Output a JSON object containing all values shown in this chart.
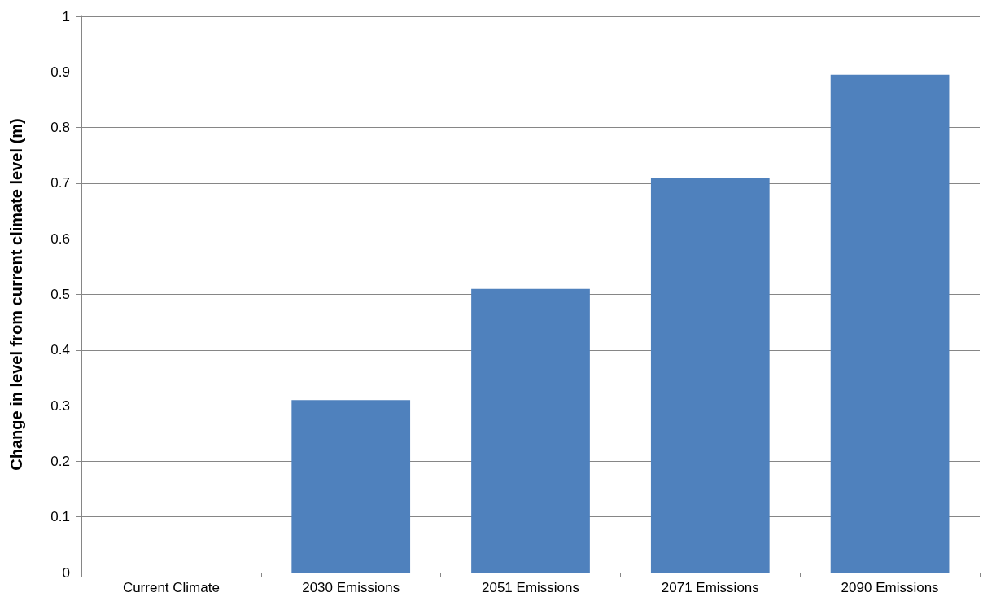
{
  "chart_data": {
    "type": "bar",
    "ylabel": "Change in level from current climate level (m)",
    "categories": [
      "Current Climate",
      "2030 Emissions",
      "2051 Emissions",
      "2071 Emissions",
      "2090 Emissions"
    ],
    "values": [
      0,
      0.31,
      0.51,
      0.71,
      0.895
    ],
    "color": "#4f81bd",
    "ylim": [
      0,
      1
    ],
    "yticks": [
      0,
      0.1,
      0.2,
      0.3,
      0.4,
      0.5,
      0.6,
      0.7,
      0.8,
      0.9,
      1
    ],
    "grid": true
  }
}
